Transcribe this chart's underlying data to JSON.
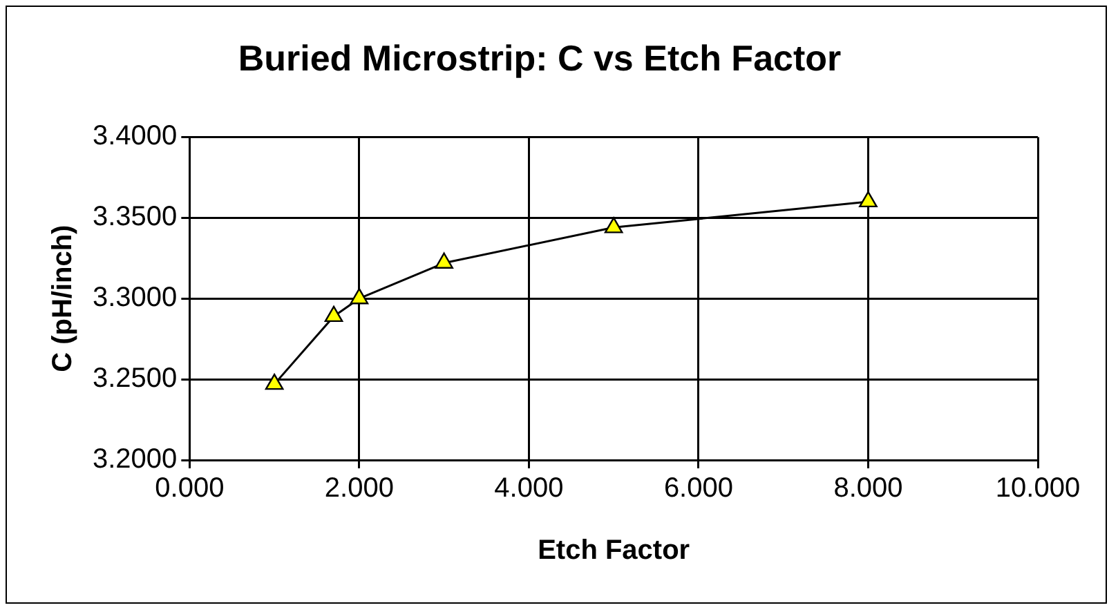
{
  "chart_data": {
    "type": "line",
    "title": "Buried Microstrip: C vs Etch Factor",
    "xlabel": "Etch Factor",
    "ylabel": "C (pH/inch)",
    "x": [
      1,
      1.7,
      2,
      3,
      5,
      8
    ],
    "series": [
      {
        "color": "#ffff00",
        "values": [
          3.247,
          3.289,
          3.3,
          3.322,
          3.344,
          3.36
        ]
      }
    ],
    "xlim": [
      0,
      10
    ],
    "xticks": [
      {
        "value": 0,
        "label": "0.000"
      },
      {
        "value": 2,
        "label": "2.000"
      },
      {
        "value": 4,
        "label": "4.000"
      },
      {
        "value": 6,
        "label": "6.000"
      },
      {
        "value": 8,
        "label": "8.000"
      },
      {
        "value": 10,
        "label": "10.000"
      }
    ],
    "ylim": [
      3.2,
      3.4
    ],
    "yticks": [
      {
        "value": 3.2,
        "label": "3.2000"
      },
      {
        "value": 3.25,
        "label": "3.2500"
      },
      {
        "value": 3.3,
        "label": "3.3000"
      },
      {
        "value": 3.35,
        "label": "3.3500"
      },
      {
        "value": 3.4,
        "label": "3.4000"
      }
    ],
    "grid": true,
    "legend": false,
    "marker": "triangle",
    "line_style": "solid"
  }
}
